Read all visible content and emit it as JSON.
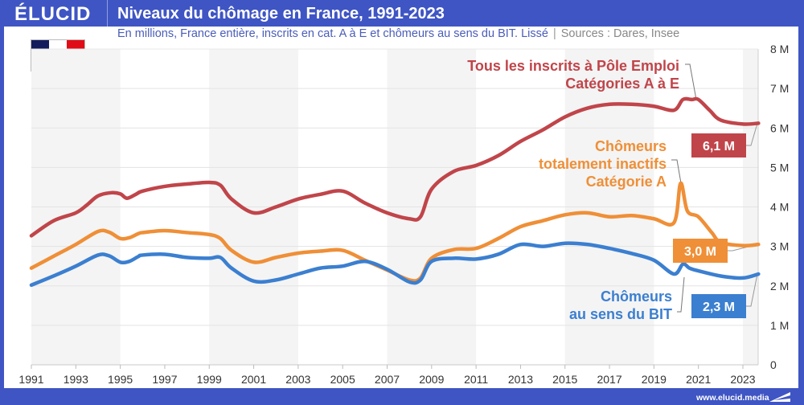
{
  "header": {
    "logo": "ÉLUCID",
    "title": "Niveaux du chômage en France, 1991-2023",
    "subtitle": "En millions, France entière, inscrits en cat. A à E et chômeurs au sens du BIT. Lissé",
    "separator": "|",
    "sources": "Sources : Dares, Insee"
  },
  "flag": {
    "name": "France",
    "colors": [
      "#141b5c",
      "#ffffff",
      "#e00d16"
    ]
  },
  "footer": {
    "url": "www.elucid.media"
  },
  "colors": {
    "frame": "#3f55c4",
    "red_series": "#c0454a",
    "orange_series": "#ef8f37",
    "blue_series": "#3b7fd0",
    "band": "#f4f4f4",
    "grid": "#e3e3e3"
  },
  "chart_data": {
    "type": "line",
    "title": "Niveaux du chômage en France, 1991-2023",
    "xlabel": "",
    "ylabel": "",
    "xlim": [
      1991,
      2023.7
    ],
    "ylim": [
      0,
      8
    ],
    "y_axis_position": "right",
    "grid": true,
    "alternating_bands": true,
    "x_ticks": [
      "1991",
      "1993",
      "1995",
      "1997",
      "1999",
      "2001",
      "2003",
      "2005",
      "2007",
      "2009",
      "2011",
      "2013",
      "2015",
      "2017",
      "2019",
      "2021",
      "2023"
    ],
    "y_ticks": [
      "0",
      "1 M",
      "2 M",
      "3 M",
      "4 M",
      "5 M",
      "6 M",
      "7 M",
      "8 M"
    ],
    "series": [
      {
        "name": "Tous les inscrits à Pôle Emploi Catégories A à E",
        "label_lines": [
          "Tous les inscrits à Pôle Emploi",
          "Catégories A à E"
        ],
        "end_label": "6,1 M",
        "color": "#c0454a",
        "x": [
          1991,
          1992,
          1993,
          1993.5,
          1994,
          1994.6,
          1995,
          1995.3,
          1995.7,
          1996,
          1997,
          1998,
          1999,
          1999.5,
          2000,
          2001,
          2002,
          2003,
          2004,
          2005,
          2006,
          2007,
          2008,
          2008.5,
          2009,
          2010,
          2011,
          2012,
          2013,
          2014,
          2015,
          2016,
          2017,
          2018,
          2019,
          2019.9,
          2020.3,
          2020.7,
          2021,
          2021.5,
          2022,
          2023,
          2023.7
        ],
        "values": [
          3.27,
          3.65,
          3.85,
          4.05,
          4.28,
          4.36,
          4.33,
          4.22,
          4.32,
          4.4,
          4.52,
          4.58,
          4.62,
          4.55,
          4.2,
          3.85,
          4.0,
          4.2,
          4.32,
          4.4,
          4.1,
          3.85,
          3.7,
          3.75,
          4.45,
          4.9,
          5.05,
          5.3,
          5.66,
          5.95,
          6.28,
          6.5,
          6.6,
          6.6,
          6.55,
          6.45,
          6.72,
          6.72,
          6.72,
          6.45,
          6.2,
          6.1,
          6.12
        ]
      },
      {
        "name": "Chômeurs totalement inactifs Catégorie A",
        "label_lines": [
          "Chômeurs",
          "totalement inactifs",
          "Catégorie A"
        ],
        "end_label": "3,0 M",
        "color": "#ef8f37",
        "x": [
          1991,
          1992,
          1993,
          1994,
          1994.5,
          1995,
          1995.4,
          1995.8,
          1996,
          1997,
          1998,
          1999,
          1999.5,
          2000,
          2001,
          2002,
          2003,
          2004,
          2005,
          2006,
          2007,
          2008,
          2008.5,
          2009,
          2010,
          2011,
          2012,
          2013,
          2014,
          2015,
          2016,
          2017,
          2018,
          2019,
          2019.9,
          2020.2,
          2020.5,
          2021,
          2021.6,
          2022,
          2023,
          2023.7
        ],
        "values": [
          2.45,
          2.75,
          3.05,
          3.38,
          3.36,
          3.2,
          3.22,
          3.32,
          3.35,
          3.4,
          3.35,
          3.3,
          3.2,
          2.9,
          2.6,
          2.72,
          2.83,
          2.88,
          2.9,
          2.65,
          2.4,
          2.15,
          2.2,
          2.7,
          2.92,
          2.95,
          3.2,
          3.5,
          3.65,
          3.8,
          3.85,
          3.75,
          3.78,
          3.7,
          3.6,
          4.6,
          3.9,
          3.75,
          3.35,
          3.1,
          3.02,
          3.05
        ]
      },
      {
        "name": "Chômeurs au sens du BIT",
        "label_lines": [
          "Chômeurs",
          "au sens du BIT"
        ],
        "end_label": "2,3 M",
        "color": "#3b7fd0",
        "x": [
          1991,
          1992,
          1993,
          1994,
          1994.5,
          1995,
          1995.4,
          1995.8,
          1996,
          1997,
          1998,
          1999,
          1999.5,
          2000,
          2001,
          2002,
          2003,
          2004,
          2005,
          2006,
          2007,
          2008,
          2008.5,
          2009,
          2010,
          2011,
          2012,
          2013,
          2014,
          2015,
          2016,
          2017,
          2018,
          2019,
          2019.9,
          2020.3,
          2020.6,
          2021,
          2022,
          2023,
          2023.7
        ],
        "values": [
          2.02,
          2.25,
          2.5,
          2.78,
          2.76,
          2.6,
          2.62,
          2.74,
          2.78,
          2.8,
          2.72,
          2.7,
          2.72,
          2.45,
          2.12,
          2.15,
          2.3,
          2.45,
          2.5,
          2.62,
          2.42,
          2.1,
          2.15,
          2.62,
          2.7,
          2.68,
          2.8,
          3.05,
          3.0,
          3.08,
          3.05,
          2.95,
          2.82,
          2.65,
          2.3,
          2.55,
          2.45,
          2.38,
          2.25,
          2.2,
          2.3
        ]
      }
    ]
  }
}
